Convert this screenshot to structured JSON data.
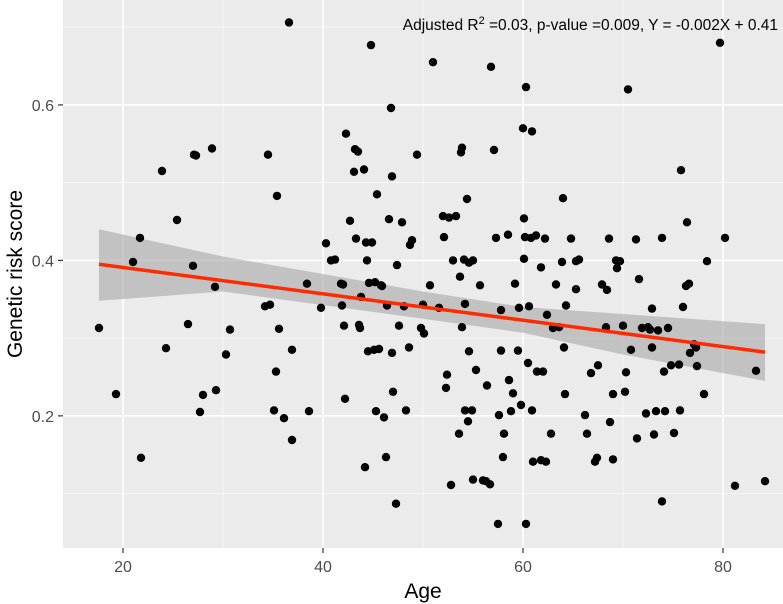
{
  "chart_data": {
    "type": "scatter",
    "title": "",
    "xlabel": "Age",
    "ylabel": "Genetic risk score",
    "xlim": [
      14,
      86
    ],
    "ylim": [
      0.03,
      0.735
    ],
    "x_ticks": [
      20,
      40,
      60,
      80
    ],
    "y_ticks": [
      0.2,
      0.4,
      0.6
    ],
    "x_tick_labels": [
      "20",
      "40",
      "60",
      "80"
    ],
    "y_tick_labels": [
      "0.2",
      "0.4",
      "0.6"
    ],
    "grid": true,
    "annotation": {
      "prefix": "Adjusted R",
      "superscript": "2",
      "suffix": " =0.03, p-value =0.009, Y = -0.002X + 0.41"
    },
    "colors": {
      "panel": "#ebebeb",
      "grid_major": "#ffffff",
      "points": "#000000",
      "fit_line": "#ff2a00",
      "confidence_band": "#a6a6a6"
    },
    "regression": {
      "x_range": [
        17.6,
        84.2
      ],
      "y_start": 0.395,
      "y_end": 0.282,
      "band_upper": [
        [
          17.6,
          0.44
        ],
        [
          30,
          0.405
        ],
        [
          50,
          0.36
        ],
        [
          60,
          0.34
        ],
        [
          70,
          0.331
        ],
        [
          84.2,
          0.318
        ]
      ],
      "band_lower": [
        [
          84.2,
          0.245
        ],
        [
          70,
          0.279
        ],
        [
          60,
          0.307
        ],
        [
          50,
          0.325
        ],
        [
          30,
          0.36
        ],
        [
          17.6,
          0.348
        ]
      ]
    },
    "points": [
      [
        17.6,
        0.313
      ],
      [
        19.3,
        0.228
      ],
      [
        21.0,
        0.398
      ],
      [
        21.7,
        0.429
      ],
      [
        21.8,
        0.146
      ],
      [
        23.9,
        0.515
      ],
      [
        24.3,
        0.287
      ],
      [
        25.4,
        0.452
      ],
      [
        26.5,
        0.318
      ],
      [
        27.0,
        0.393
      ],
      [
        27.1,
        0.536
      ],
      [
        27.3,
        0.535
      ],
      [
        27.7,
        0.205
      ],
      [
        28.0,
        0.227
      ],
      [
        28.9,
        0.544
      ],
      [
        29.2,
        0.366
      ],
      [
        29.3,
        0.233
      ],
      [
        30.3,
        0.279
      ],
      [
        30.7,
        0.311
      ],
      [
        34.2,
        0.341
      ],
      [
        34.5,
        0.536
      ],
      [
        34.7,
        0.343
      ],
      [
        35.1,
        0.207
      ],
      [
        35.3,
        0.257
      ],
      [
        35.4,
        0.483
      ],
      [
        35.6,
        0.312
      ],
      [
        36.1,
        0.197
      ],
      [
        36.6,
        0.706
      ],
      [
        36.9,
        0.285
      ],
      [
        36.9,
        0.169
      ],
      [
        38.4,
        0.37
      ],
      [
        38.6,
        0.206
      ],
      [
        39.8,
        0.339
      ],
      [
        40.3,
        0.422
      ],
      [
        40.8,
        0.4
      ],
      [
        41.2,
        0.401
      ],
      [
        41.8,
        0.37
      ],
      [
        41.9,
        0.342
      ],
      [
        42.0,
        0.369
      ],
      [
        42.1,
        0.316
      ],
      [
        42.2,
        0.222
      ],
      [
        42.3,
        0.563
      ],
      [
        42.7,
        0.451
      ],
      [
        43.1,
        0.514
      ],
      [
        43.2,
        0.543
      ],
      [
        43.3,
        0.428
      ],
      [
        43.5,
        0.54
      ],
      [
        43.6,
        0.317
      ],
      [
        43.7,
        0.313
      ],
      [
        43.8,
        0.353
      ],
      [
        44.1,
        0.517
      ],
      [
        44.2,
        0.134
      ],
      [
        44.3,
        0.423
      ],
      [
        44.4,
        0.4
      ],
      [
        44.5,
        0.283
      ],
      [
        44.6,
        0.371
      ],
      [
        44.8,
        0.677
      ],
      [
        44.9,
        0.423
      ],
      [
        45.1,
        0.285
      ],
      [
        45.2,
        0.372
      ],
      [
        45.3,
        0.206
      ],
      [
        45.4,
        0.485
      ],
      [
        45.6,
        0.286
      ],
      [
        45.8,
        0.368
      ],
      [
        45.9,
        0.367
      ],
      [
        46.1,
        0.198
      ],
      [
        46.3,
        0.147
      ],
      [
        46.4,
        0.342
      ],
      [
        46.6,
        0.453
      ],
      [
        46.8,
        0.596
      ],
      [
        46.9,
        0.508
      ],
      [
        46.9,
        0.281
      ],
      [
        47.0,
        0.231
      ],
      [
        47.3,
        0.087
      ],
      [
        47.4,
        0.394
      ],
      [
        47.6,
        0.316
      ],
      [
        47.9,
        0.449
      ],
      [
        48.1,
        0.341
      ],
      [
        48.3,
        0.207
      ],
      [
        48.6,
        0.288
      ],
      [
        48.7,
        0.42
      ],
      [
        48.9,
        0.426
      ],
      [
        49.4,
        0.536
      ],
      [
        49.8,
        0.313
      ],
      [
        50.0,
        0.343
      ],
      [
        50.1,
        0.306
      ],
      [
        50.7,
        0.368
      ],
      [
        51.0,
        0.655
      ],
      [
        51.6,
        0.339
      ],
      [
        52.0,
        0.457
      ],
      [
        52.1,
        0.43
      ],
      [
        52.3,
        0.236
      ],
      [
        52.4,
        0.253
      ],
      [
        52.6,
        0.455
      ],
      [
        52.8,
        0.111
      ],
      [
        53.0,
        0.4
      ],
      [
        53.3,
        0.457
      ],
      [
        53.6,
        0.177
      ],
      [
        53.7,
        0.379
      ],
      [
        53.8,
        0.539
      ],
      [
        53.9,
        0.545
      ],
      [
        53.9,
        0.314
      ],
      [
        54.1,
        0.401
      ],
      [
        54.2,
        0.344
      ],
      [
        54.2,
        0.207
      ],
      [
        54.4,
        0.479
      ],
      [
        54.5,
        0.193
      ],
      [
        54.6,
        0.283
      ],
      [
        54.6,
        0.397
      ],
      [
        54.9,
        0.207
      ],
      [
        55.0,
        0.4
      ],
      [
        55.0,
        0.118
      ],
      [
        55.3,
        0.259
      ],
      [
        55.7,
        0.368
      ],
      [
        56.0,
        0.117
      ],
      [
        56.3,
        0.116
      ],
      [
        56.4,
        0.239
      ],
      [
        56.7,
        0.112
      ],
      [
        56.8,
        0.649
      ],
      [
        57.1,
        0.542
      ],
      [
        57.3,
        0.429
      ],
      [
        57.5,
        0.061
      ],
      [
        57.6,
        0.201
      ],
      [
        57.8,
        0.284
      ],
      [
        57.8,
        0.336
      ],
      [
        58.0,
        0.147
      ],
      [
        58.1,
        0.177
      ],
      [
        58.5,
        0.433
      ],
      [
        58.6,
        0.246
      ],
      [
        58.8,
        0.206
      ],
      [
        59.0,
        0.229
      ],
      [
        59.2,
        0.37
      ],
      [
        59.5,
        0.284
      ],
      [
        59.6,
        0.339
      ],
      [
        59.8,
        0.214
      ],
      [
        60.0,
        0.57
      ],
      [
        60.1,
        0.402
      ],
      [
        60.1,
        0.454
      ],
      [
        60.2,
        0.43
      ],
      [
        60.3,
        0.623
      ],
      [
        60.3,
        0.061
      ],
      [
        60.5,
        0.268
      ],
      [
        60.6,
        0.341
      ],
      [
        60.8,
        0.429
      ],
      [
        60.9,
        0.566
      ],
      [
        60.9,
        0.207
      ],
      [
        61.0,
        0.141
      ],
      [
        61.3,
        0.432
      ],
      [
        61.4,
        0.257
      ],
      [
        61.8,
        0.391
      ],
      [
        61.8,
        0.143
      ],
      [
        62.0,
        0.257
      ],
      [
        62.2,
        0.428
      ],
      [
        62.3,
        0.141
      ],
      [
        62.4,
        0.33
      ],
      [
        62.8,
        0.177
      ],
      [
        63.0,
        0.313
      ],
      [
        63.3,
        0.369
      ],
      [
        63.6,
        0.314
      ],
      [
        63.9,
        0.398
      ],
      [
        64.0,
        0.48
      ],
      [
        64.1,
        0.288
      ],
      [
        64.2,
        0.228
      ],
      [
        64.3,
        0.342
      ],
      [
        64.8,
        0.428
      ],
      [
        65.3,
        0.363
      ],
      [
        65.3,
        0.399
      ],
      [
        65.6,
        0.401
      ],
      [
        66.2,
        0.201
      ],
      [
        66.4,
        0.177
      ],
      [
        66.8,
        0.255
      ],
      [
        67.2,
        0.141
      ],
      [
        67.4,
        0.146
      ],
      [
        67.5,
        0.265
      ],
      [
        67.9,
        0.369
      ],
      [
        68.3,
        0.314
      ],
      [
        68.4,
        0.362
      ],
      [
        68.6,
        0.428
      ],
      [
        68.7,
        0.192
      ],
      [
        69.0,
        0.228
      ],
      [
        69.0,
        0.144
      ],
      [
        69.3,
        0.4
      ],
      [
        69.4,
        0.39
      ],
      [
        69.7,
        0.399
      ],
      [
        70.0,
        0.316
      ],
      [
        70.2,
        0.231
      ],
      [
        70.3,
        0.256
      ],
      [
        70.5,
        0.62
      ],
      [
        70.8,
        0.285
      ],
      [
        71.3,
        0.427
      ],
      [
        71.4,
        0.171
      ],
      [
        71.6,
        0.376
      ],
      [
        71.9,
        0.313
      ],
      [
        72.3,
        0.203
      ],
      [
        72.5,
        0.314
      ],
      [
        72.7,
        0.311
      ],
      [
        72.9,
        0.288
      ],
      [
        72.9,
        0.338
      ],
      [
        73.1,
        0.176
      ],
      [
        73.3,
        0.206
      ],
      [
        73.5,
        0.31
      ],
      [
        73.9,
        0.429
      ],
      [
        73.9,
        0.09
      ],
      [
        74.1,
        0.257
      ],
      [
        74.2,
        0.206
      ],
      [
        74.5,
        0.313
      ],
      [
        74.8,
        0.265
      ],
      [
        75.1,
        0.178
      ],
      [
        75.6,
        0.266
      ],
      [
        75.7,
        0.207
      ],
      [
        75.8,
        0.516
      ],
      [
        76.0,
        0.34
      ],
      [
        76.3,
        0.367
      ],
      [
        76.4,
        0.449
      ],
      [
        76.6,
        0.37
      ],
      [
        76.7,
        0.281
      ],
      [
        77.1,
        0.292
      ],
      [
        77.3,
        0.288
      ],
      [
        77.4,
        0.264
      ],
      [
        78.1,
        0.228
      ],
      [
        78.4,
        0.399
      ],
      [
        79.7,
        0.68
      ],
      [
        80.2,
        0.429
      ],
      [
        81.2,
        0.11
      ],
      [
        83.3,
        0.258
      ],
      [
        84.2,
        0.116
      ]
    ]
  }
}
